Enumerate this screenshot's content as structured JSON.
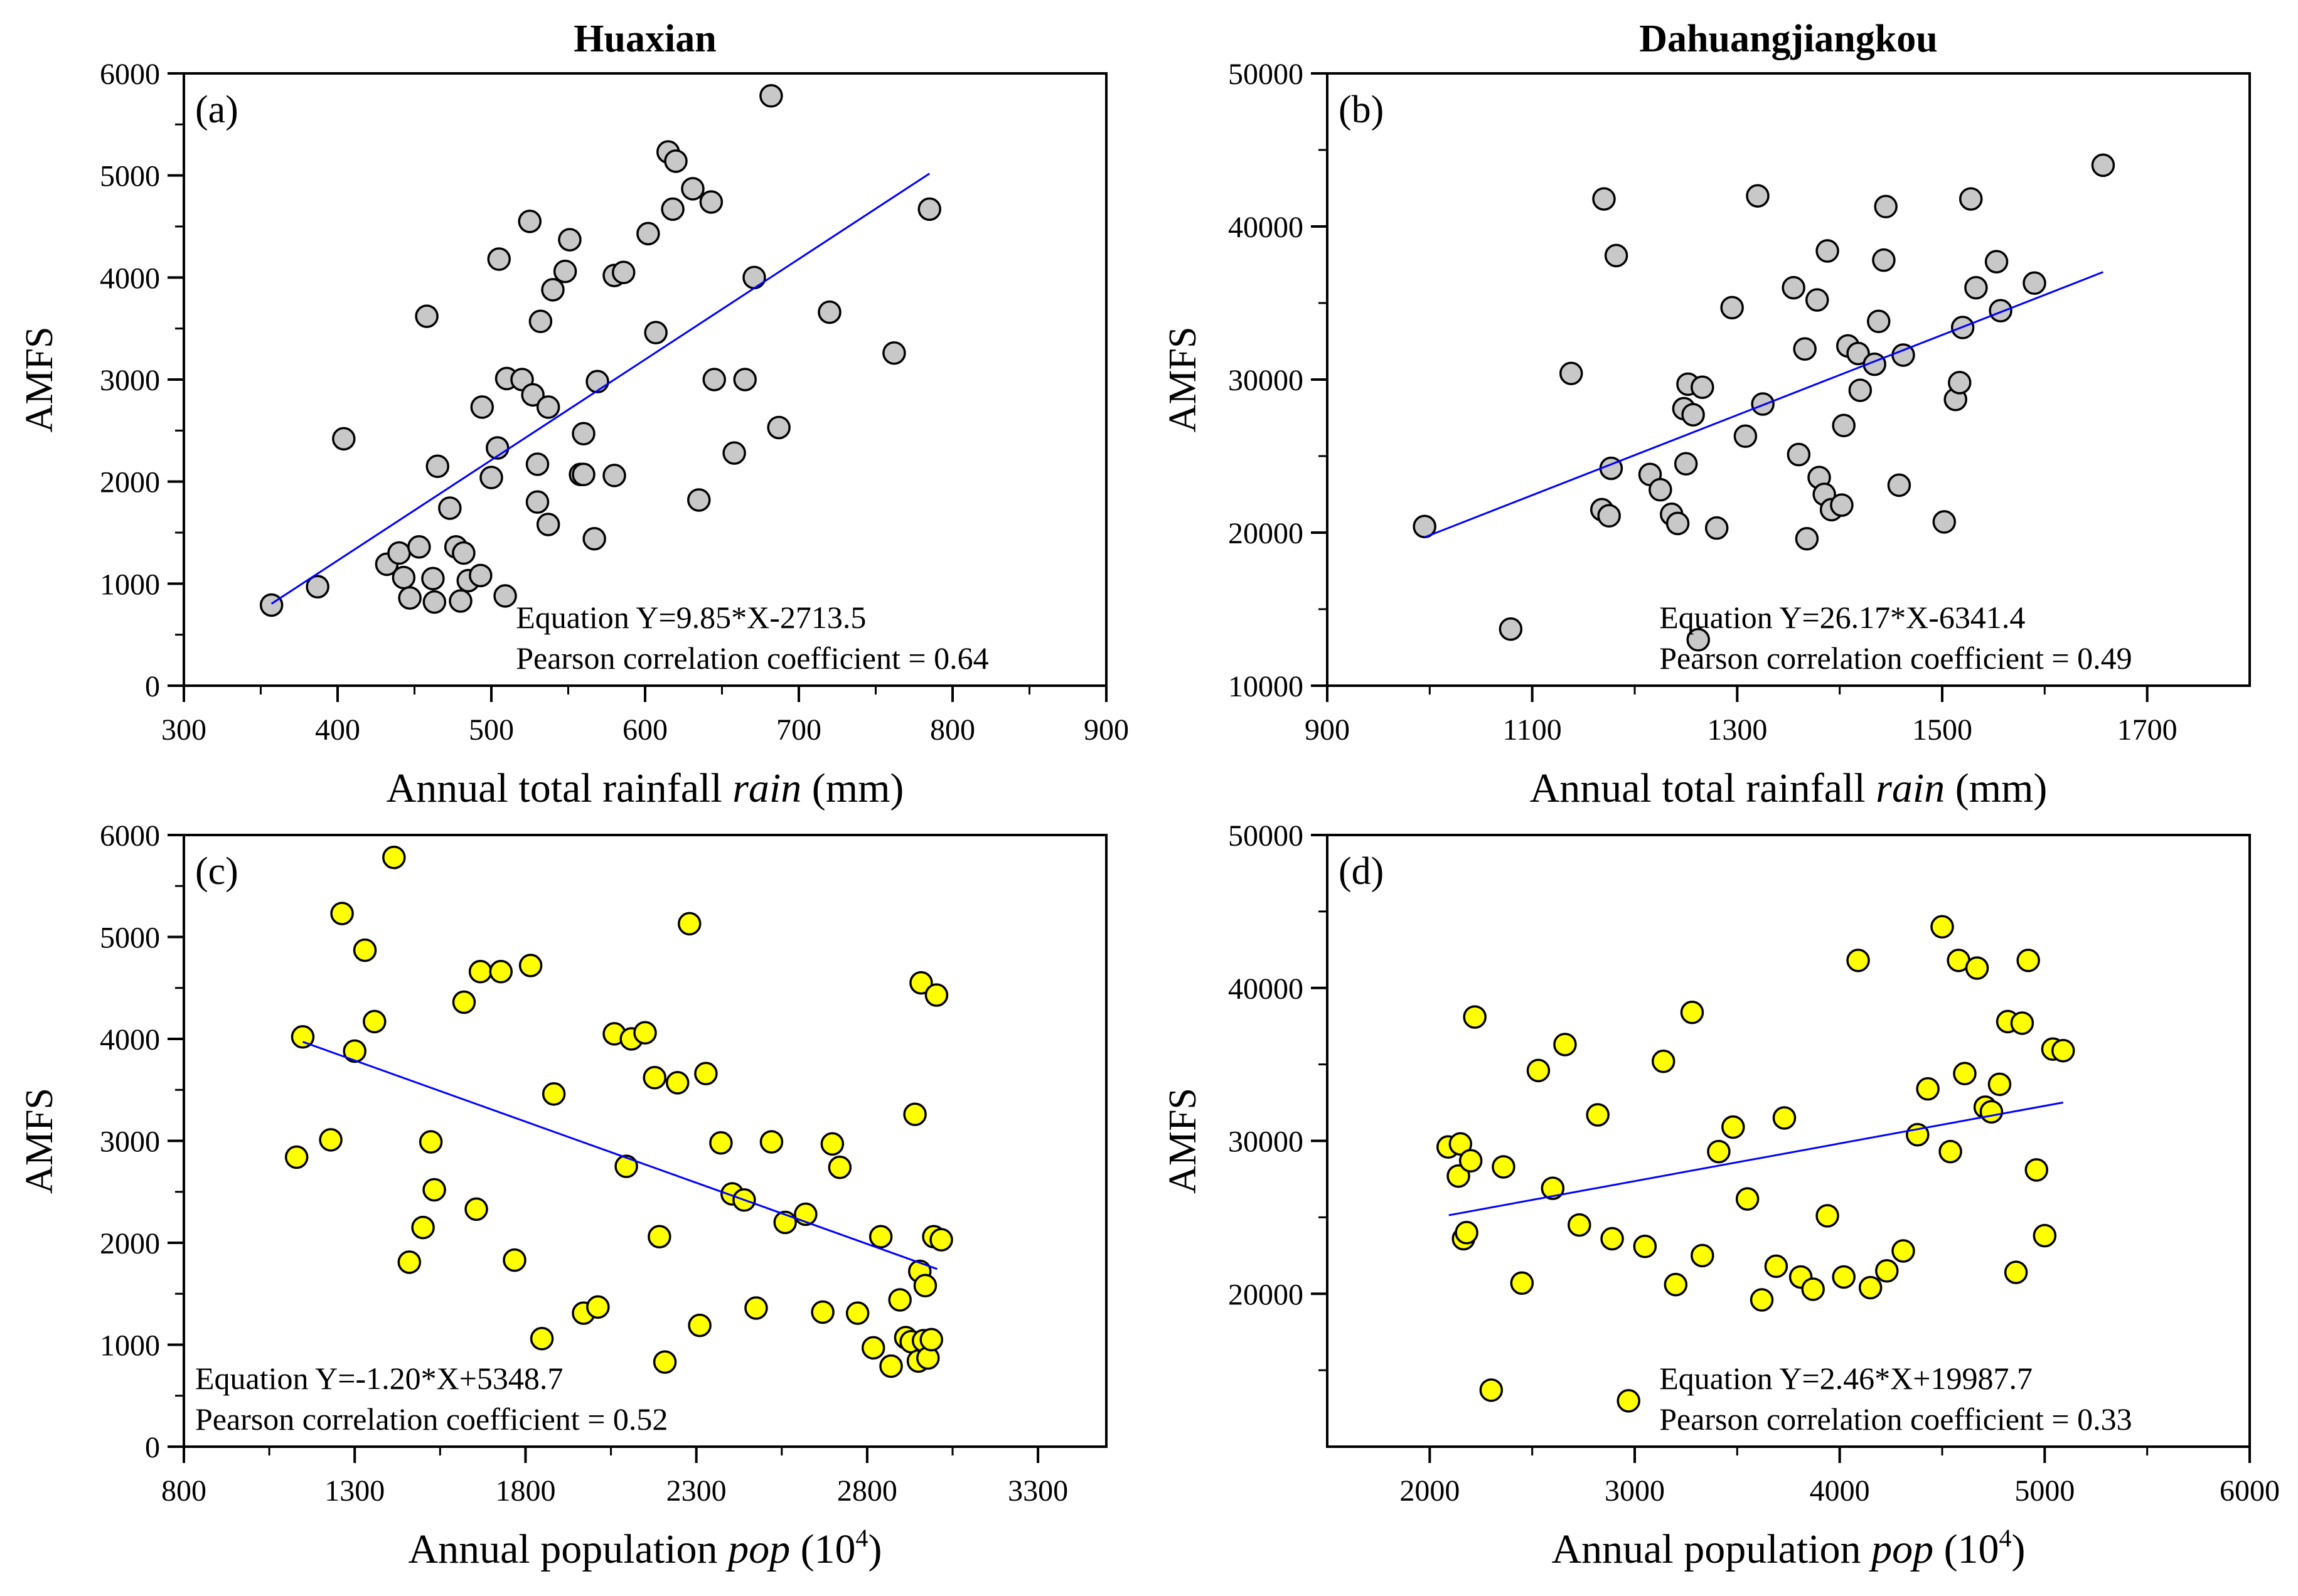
{
  "chart_data": [
    {
      "id": "a",
      "type": "scatter",
      "column_title": "Huaxian",
      "panel_label": "(a)",
      "xlabel": "Annual total rainfall",
      "xlabel_var": "rain",
      "xlabel_unit": " (mm)",
      "xlabel_sup": "",
      "xlabel_tail": "",
      "ylabel": "AMFS",
      "xlim": [
        300,
        900
      ],
      "ylim": [
        0,
        6000
      ],
      "xticks": [
        "300",
        "400",
        "500",
        "600",
        "700",
        "800",
        "900"
      ],
      "yticks": [
        "0",
        "1000",
        "2000",
        "3000",
        "4000",
        "5000",
        "6000"
      ],
      "marker_color": "#c8c8c8",
      "fit_line_color": "#0000ff",
      "equation": "Equation Y=9.85*X-2713.5",
      "correlation": "Pearson correlation coefficient = 0.64",
      "annotation_position": "bottom-right",
      "fit": {
        "slope": 9.85,
        "intercept": -2713.5,
        "x_range": [
          357,
          785
        ]
      },
      "points": [
        [
          357,
          790
        ],
        [
          387,
          970
        ],
        [
          404,
          2420
        ],
        [
          432,
          1190
        ],
        [
          440,
          1300
        ],
        [
          443,
          1060
        ],
        [
          447,
          860
        ],
        [
          453,
          1360
        ],
        [
          458,
          3620
        ],
        [
          462,
          1050
        ],
        [
          463,
          820
        ],
        [
          465,
          2150
        ],
        [
          473,
          1740
        ],
        [
          477,
          1360
        ],
        [
          480,
          830
        ],
        [
          482,
          1300
        ],
        [
          485,
          1030
        ],
        [
          493,
          1080
        ],
        [
          494,
          2730
        ],
        [
          500,
          2040
        ],
        [
          504,
          2330
        ],
        [
          505,
          4180
        ],
        [
          509,
          880
        ],
        [
          510,
          3010
        ],
        [
          520,
          3000
        ],
        [
          525,
          4550
        ],
        [
          527,
          2850
        ],
        [
          530,
          2170
        ],
        [
          530,
          1800
        ],
        [
          532,
          3570
        ],
        [
          537,
          1580
        ],
        [
          537,
          2730
        ],
        [
          540,
          3880
        ],
        [
          548,
          4060
        ],
        [
          551,
          4370
        ],
        [
          558,
          2070
        ],
        [
          560,
          2470
        ],
        [
          560,
          2070
        ],
        [
          567,
          1440
        ],
        [
          569,
          2980
        ],
        [
          580,
          4020
        ],
        [
          580,
          2060
        ],
        [
          586,
          4050
        ],
        [
          602,
          4430
        ],
        [
          607,
          3460
        ],
        [
          615,
          5230
        ],
        [
          618,
          4670
        ],
        [
          620,
          5140
        ],
        [
          631,
          4870
        ],
        [
          635,
          1820
        ],
        [
          643,
          4740
        ],
        [
          645,
          3000
        ],
        [
          658,
          2280
        ],
        [
          665,
          3000
        ],
        [
          671,
          4000
        ],
        [
          682,
          5780
        ],
        [
          687,
          2530
        ],
        [
          720,
          3660
        ],
        [
          762,
          3260
        ],
        [
          785,
          4670
        ]
      ]
    },
    {
      "id": "b",
      "type": "scatter",
      "column_title": "Dahuangjiangkou",
      "panel_label": "(b)",
      "xlabel": "Annual total rainfall",
      "xlabel_var": "rain",
      "xlabel_unit": " (mm)",
      "xlabel_sup": "",
      "xlabel_tail": "",
      "ylabel": "AMFS",
      "xlim": [
        900,
        1800
      ],
      "ylim": [
        10000,
        50000
      ],
      "xticks": [
        "900",
        "1100",
        "1300",
        "1500",
        "1700"
      ],
      "yticks": [
        "10000",
        "20000",
        "30000",
        "40000",
        "50000"
      ],
      "marker_color": "#c8c8c8",
      "fit_line_color": "#0000ff",
      "equation": "Equation Y=26.17*X-6341.4",
      "correlation": "Pearson correlation coefficient  = 0.49",
      "annotation_position": "bottom-right",
      "fit": {
        "slope": 26.17,
        "intercept": -6341.4,
        "x_range": [
          995,
          1657
        ]
      },
      "points": [
        [
          995,
          20400
        ],
        [
          1079,
          13700
        ],
        [
          1138,
          30400
        ],
        [
          1168,
          21500
        ],
        [
          1170,
          41800
        ],
        [
          1175,
          21100
        ],
        [
          1177,
          24200
        ],
        [
          1182,
          38100
        ],
        [
          1215,
          23800
        ],
        [
          1225,
          22800
        ],
        [
          1236,
          21200
        ],
        [
          1242,
          20600
        ],
        [
          1248,
          28100
        ],
        [
          1250,
          24500
        ],
        [
          1252,
          29700
        ],
        [
          1257,
          27700
        ],
        [
          1262,
          13000
        ],
        [
          1266,
          29500
        ],
        [
          1280,
          20300
        ],
        [
          1295,
          34700
        ],
        [
          1308,
          26300
        ],
        [
          1320,
          42000
        ],
        [
          1325,
          28400
        ],
        [
          1355,
          36000
        ],
        [
          1360,
          25100
        ],
        [
          1366,
          32000
        ],
        [
          1368,
          19600
        ],
        [
          1378,
          35200
        ],
        [
          1380,
          23600
        ],
        [
          1385,
          22500
        ],
        [
          1388,
          38400
        ],
        [
          1392,
          21500
        ],
        [
          1402,
          21800
        ],
        [
          1404,
          27000
        ],
        [
          1408,
          32200
        ],
        [
          1418,
          31700
        ],
        [
          1420,
          29300
        ],
        [
          1434,
          31000
        ],
        [
          1438,
          33800
        ],
        [
          1443,
          37800
        ],
        [
          1445,
          41300
        ],
        [
          1458,
          23100
        ],
        [
          1462,
          31600
        ],
        [
          1502,
          20700
        ],
        [
          1513,
          28700
        ],
        [
          1517,
          29800
        ],
        [
          1520,
          33400
        ],
        [
          1528,
          41800
        ],
        [
          1533,
          36000
        ],
        [
          1553,
          37700
        ],
        [
          1557,
          34500
        ],
        [
          1590,
          36300
        ],
        [
          1657,
          44000
        ]
      ]
    },
    {
      "id": "c",
      "type": "scatter",
      "column_title": "",
      "panel_label": "(c)",
      "xlabel": "Annual population",
      "xlabel_var": "pop",
      "xlabel_unit": " (10",
      "xlabel_sup": "4",
      "xlabel_tail": ")",
      "ylabel": "AMFS",
      "xlim": [
        800,
        3500
      ],
      "ylim": [
        0,
        6000
      ],
      "xticks": [
        "800",
        "1300",
        "1800",
        "2300",
        "2800",
        "3300"
      ],
      "yticks": [
        "0",
        "1000",
        "2000",
        "3000",
        "4000",
        "5000",
        "6000"
      ],
      "marker_color": "#ffff00",
      "fit_line_color": "#0000ff",
      "equation": "Equation Y=-1.20*X+5348.7",
      "correlation": "Pearson correlation coefficient = 0.52",
      "annotation_position": "bottom-left",
      "fit": {
        "slope": -1.2,
        "intercept": 5348.7,
        "x_range": [
          1148,
          3005
        ]
      },
      "points": [
        [
          1130,
          2840
        ],
        [
          1148,
          4020
        ],
        [
          1230,
          3010
        ],
        [
          1263,
          5230
        ],
        [
          1300,
          3880
        ],
        [
          1330,
          4870
        ],
        [
          1358,
          4170
        ],
        [
          1415,
          5780
        ],
        [
          1460,
          1810
        ],
        [
          1500,
          2150
        ],
        [
          1523,
          2990
        ],
        [
          1533,
          2520
        ],
        [
          1620,
          4360
        ],
        [
          1656,
          2330
        ],
        [
          1668,
          4660
        ],
        [
          1728,
          4660
        ],
        [
          1768,
          1830
        ],
        [
          1815,
          4720
        ],
        [
          1848,
          1060
        ],
        [
          1883,
          3460
        ],
        [
          1970,
          1310
        ],
        [
          2012,
          1370
        ],
        [
          2060,
          4050
        ],
        [
          2095,
          2750
        ],
        [
          2110,
          4000
        ],
        [
          2150,
          4060
        ],
        [
          2178,
          3620
        ],
        [
          2192,
          2060
        ],
        [
          2208,
          830
        ],
        [
          2245,
          3570
        ],
        [
          2280,
          5130
        ],
        [
          2310,
          1190
        ],
        [
          2328,
          3660
        ],
        [
          2372,
          2980
        ],
        [
          2405,
          2480
        ],
        [
          2440,
          2420
        ],
        [
          2475,
          1360
        ],
        [
          2520,
          2990
        ],
        [
          2560,
          2200
        ],
        [
          2620,
          2280
        ],
        [
          2670,
          1320
        ],
        [
          2698,
          2970
        ],
        [
          2720,
          2740
        ],
        [
          2772,
          1310
        ],
        [
          2818,
          970
        ],
        [
          2840,
          2060
        ],
        [
          2870,
          790
        ],
        [
          2896,
          1440
        ],
        [
          2913,
          1070
        ],
        [
          2929,
          1030
        ],
        [
          2940,
          3260
        ],
        [
          2950,
          840
        ],
        [
          2954,
          1720
        ],
        [
          2958,
          4550
        ],
        [
          2965,
          1040
        ],
        [
          2970,
          1580
        ],
        [
          2978,
          870
        ],
        [
          2988,
          1050
        ],
        [
          2995,
          2060
        ],
        [
          3003,
          4430
        ],
        [
          3017,
          2030
        ]
      ]
    },
    {
      "id": "d",
      "type": "scatter",
      "column_title": "",
      "panel_label": "(d)",
      "xlabel": "Annual population",
      "xlabel_var": "pop",
      "xlabel_unit": " (10",
      "xlabel_sup": "4",
      "xlabel_tail": ")",
      "ylabel": "AMFS",
      "xlim": [
        1500,
        6000
      ],
      "ylim": [
        10000,
        50000
      ],
      "xticks": [
        "2000",
        "3000",
        "4000",
        "5000",
        "6000"
      ],
      "yticks": [
        "20000",
        "30000",
        "40000",
        "50000"
      ],
      "marker_color": "#ffff00",
      "fit_line_color": "#0000ff",
      "equation": "Equation Y=2.46*X+19987.7",
      "correlation": "Pearson correlation coefficient = 0.33",
      "annotation_position": "bottom-center",
      "fit": {
        "slope": 2.46,
        "intercept": 19987.7,
        "x_range": [
          2093,
          5090
        ]
      },
      "points": [
        [
          2090,
          29600
        ],
        [
          2140,
          27700
        ],
        [
          2150,
          29800
        ],
        [
          2165,
          23600
        ],
        [
          2180,
          24000
        ],
        [
          2200,
          28700
        ],
        [
          2220,
          38100
        ],
        [
          2300,
          13700
        ],
        [
          2360,
          28300
        ],
        [
          2450,
          20700
        ],
        [
          2530,
          34600
        ],
        [
          2600,
          26900
        ],
        [
          2660,
          36300
        ],
        [
          2730,
          24500
        ],
        [
          2820,
          31700
        ],
        [
          2890,
          23600
        ],
        [
          2970,
          13000
        ],
        [
          3050,
          23100
        ],
        [
          3140,
          35200
        ],
        [
          3200,
          20600
        ],
        [
          3280,
          38400
        ],
        [
          3330,
          22500
        ],
        [
          3410,
          29300
        ],
        [
          3480,
          30900
        ],
        [
          3550,
          26200
        ],
        [
          3620,
          19600
        ],
        [
          3690,
          21800
        ],
        [
          3730,
          31500
        ],
        [
          3810,
          21100
        ],
        [
          3870,
          20300
        ],
        [
          3940,
          25100
        ],
        [
          4020,
          21100
        ],
        [
          4090,
          41800
        ],
        [
          4150,
          20400
        ],
        [
          4230,
          21500
        ],
        [
          4310,
          22800
        ],
        [
          4380,
          30400
        ],
        [
          4430,
          33400
        ],
        [
          4500,
          44000
        ],
        [
          4540,
          29300
        ],
        [
          4580,
          41800
        ],
        [
          4610,
          34400
        ],
        [
          4670,
          41300
        ],
        [
          4710,
          32200
        ],
        [
          4740,
          31900
        ],
        [
          4780,
          33700
        ],
        [
          4820,
          37800
        ],
        [
          4860,
          21400
        ],
        [
          4890,
          37700
        ],
        [
          4920,
          41800
        ],
        [
          4960,
          28100
        ],
        [
          5000,
          23800
        ],
        [
          5040,
          36000
        ],
        [
          5090,
          35900
        ]
      ]
    }
  ]
}
